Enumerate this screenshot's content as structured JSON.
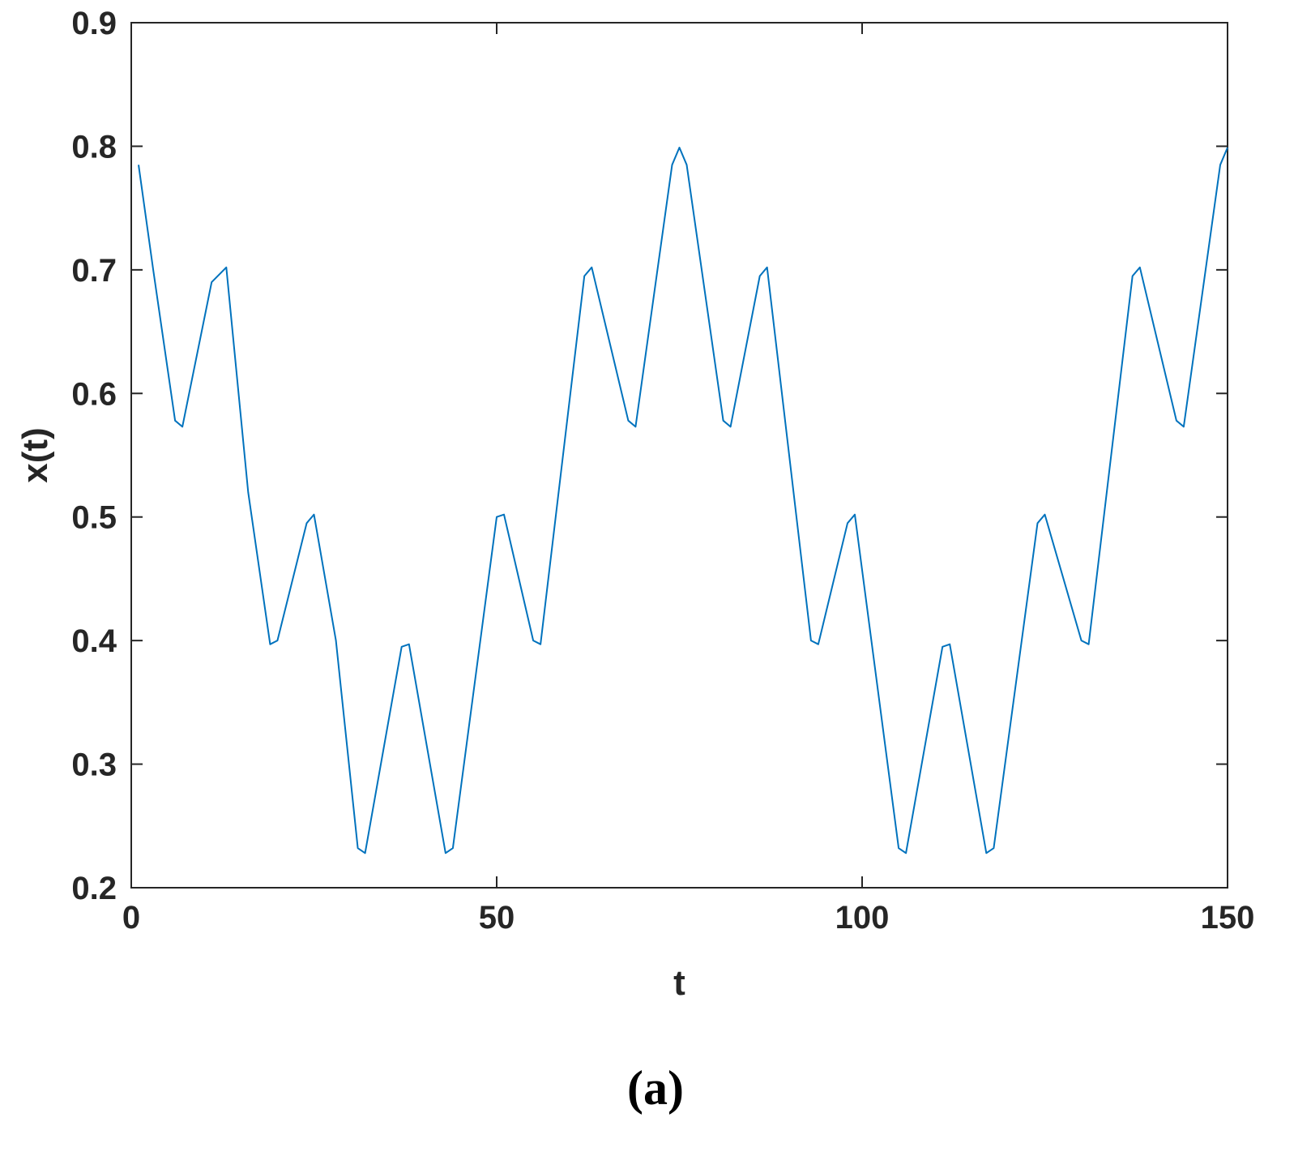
{
  "chart_data": {
    "type": "line",
    "title": "",
    "xlabel": "t",
    "ylabel": "x(t)",
    "xlim": [
      0,
      150
    ],
    "ylim": [
      0.2,
      0.9
    ],
    "x_ticks": [
      0,
      50,
      100,
      150
    ],
    "y_ticks": [
      0.2,
      0.3,
      0.4,
      0.5,
      0.6,
      0.7,
      0.8,
      0.9
    ],
    "x_tick_labels": [
      "0",
      "50",
      "100",
      "150"
    ],
    "y_tick_labels": [
      "0.2",
      "0.3",
      "0.4",
      "0.5",
      "0.6",
      "0.7",
      "0.8",
      "0.9"
    ],
    "grid": false,
    "line_color": "#0072BD",
    "series": [
      {
        "x": [
          1,
          3,
          6,
          7,
          11,
          13,
          16,
          19,
          20,
          24,
          25,
          28,
          31,
          32,
          37,
          38,
          43,
          44,
          50,
          51,
          55,
          56,
          62,
          63,
          68,
          69,
          74,
          75,
          76,
          81,
          82,
          86,
          87,
          93,
          94,
          98,
          99,
          105,
          106,
          111,
          112,
          117,
          118,
          124,
          125,
          130,
          131,
          137,
          138,
          143,
          144,
          149,
          150
        ],
        "y": [
          0.785,
          0.7,
          0.578,
          0.573,
          0.69,
          0.702,
          0.52,
          0.397,
          0.4,
          0.495,
          0.502,
          0.4,
          0.232,
          0.228,
          0.395,
          0.397,
          0.228,
          0.232,
          0.5,
          0.502,
          0.4,
          0.397,
          0.695,
          0.702,
          0.578,
          0.573,
          0.785,
          0.799,
          0.785,
          0.578,
          0.573,
          0.695,
          0.702,
          0.4,
          0.397,
          0.495,
          0.502,
          0.232,
          0.228,
          0.395,
          0.397,
          0.228,
          0.232,
          0.495,
          0.502,
          0.4,
          0.397,
          0.695,
          0.702,
          0.578,
          0.573,
          0.785,
          0.799
        ]
      }
    ]
  },
  "caption": "(a)"
}
